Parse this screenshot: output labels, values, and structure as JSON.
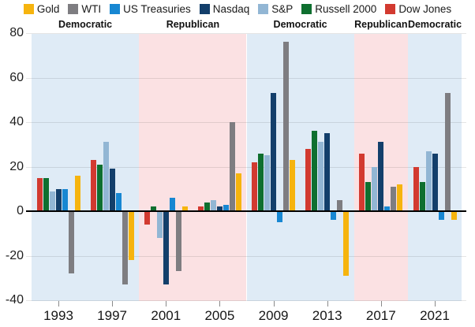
{
  "legend": {
    "items": [
      {
        "label": "Gold",
        "color": "#F6B40E"
      },
      {
        "label": "WTI",
        "color": "#7E7D81"
      },
      {
        "label": "US Treasuries",
        "color": "#1787D2"
      },
      {
        "label": "Nasdaq",
        "color": "#133F6B"
      },
      {
        "label": "S&P",
        "color": "#92B6D4"
      },
      {
        "label": "Russell 2000",
        "color": "#0E6F2F"
      },
      {
        "label": "Dow Jones",
        "color": "#D23A30"
      }
    ]
  },
  "chart_data": {
    "type": "bar",
    "title": "",
    "categories": [
      "1993",
      "1997",
      "2001",
      "2005",
      "2009",
      "2013",
      "2017",
      "2021"
    ],
    "series": [
      {
        "name": "Dow Jones",
        "color": "#D23A30",
        "values": [
          15,
          23,
          -6,
          2,
          22,
          28,
          26,
          20
        ]
      },
      {
        "name": "Russell 2000",
        "color": "#0E6F2F",
        "values": [
          15,
          21,
          2,
          4,
          26,
          36,
          13,
          13
        ]
      },
      {
        "name": "S&P",
        "color": "#92B6D4",
        "values": [
          9,
          31,
          -12,
          5,
          25,
          31,
          20,
          27
        ]
      },
      {
        "name": "Nasdaq",
        "color": "#133F6B",
        "values": [
          10,
          19,
          -33,
          2,
          53,
          35,
          31,
          26
        ]
      },
      {
        "name": "US Treasuries",
        "color": "#1787D2",
        "values": [
          10,
          8,
          6,
          3,
          -5,
          -4,
          2,
          -4
        ]
      },
      {
        "name": "WTI",
        "color": "#7E7D81",
        "values": [
          -28,
          -33,
          -27,
          40,
          76,
          5,
          11,
          53
        ]
      },
      {
        "name": "Gold",
        "color": "#F6B40E",
        "values": [
          16,
          -22,
          2,
          17,
          23,
          -29,
          12,
          -4
        ]
      }
    ],
    "yticks": [
      80,
      60,
      40,
      20,
      0,
      -20,
      -40
    ],
    "ylim": [
      -40,
      80
    ],
    "grid": true,
    "legend_position": "top",
    "party_bands": [
      {
        "label": "Democratic",
        "party": "democratic",
        "categories": [
          "1993",
          "1997"
        ]
      },
      {
        "label": "Republican",
        "party": "republican",
        "categories": [
          "2001",
          "2005"
        ]
      },
      {
        "label": "Democratic",
        "party": "democratic",
        "categories": [
          "2009",
          "2013"
        ]
      },
      {
        "label": "Republican",
        "party": "republican",
        "categories": [
          "2017"
        ]
      },
      {
        "label": "Democratic",
        "party": "democratic",
        "categories": [
          "2021"
        ]
      }
    ],
    "band_colors": {
      "democratic": "#DFEBF6",
      "republican": "#FBE1E3"
    }
  }
}
